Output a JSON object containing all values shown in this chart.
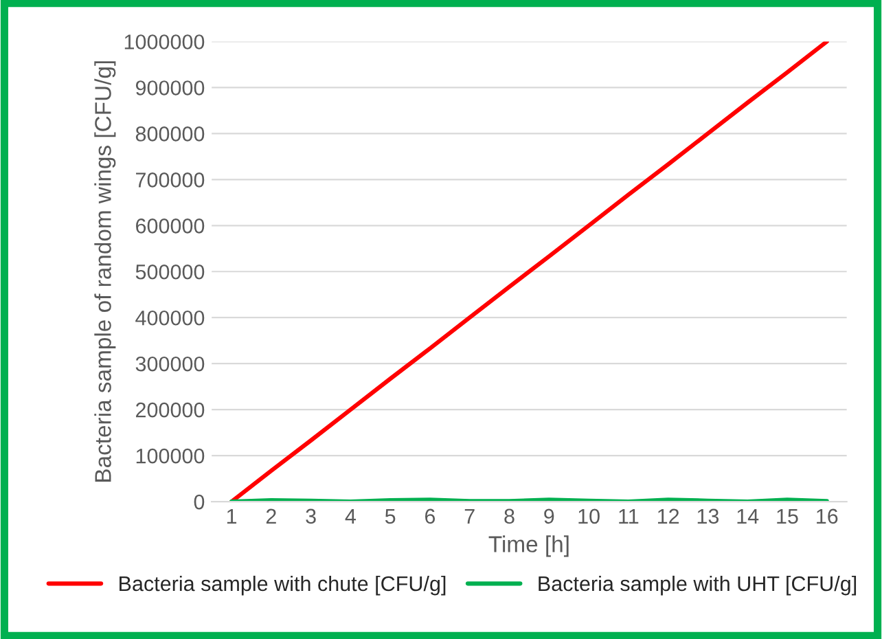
{
  "chart_data": {
    "type": "line",
    "xlabel": "Time [h]",
    "ylabel": "Bacteria sample of random wings [CFU/g]",
    "categories": [
      "1",
      "2",
      "3",
      "4",
      "5",
      "6",
      "7",
      "8",
      "9",
      "10",
      "11",
      "12",
      "13",
      "14",
      "15",
      "16"
    ],
    "series": [
      {
        "name": "Bacteria sample with chute [CFU/g]",
        "color": "#ff0000",
        "values": [
          0,
          67000,
          133000,
          200000,
          267000,
          333000,
          400000,
          467000,
          533000,
          600000,
          667000,
          733000,
          800000,
          867000,
          933000,
          1000000
        ]
      },
      {
        "name": "Bacteria sample with UHT [CFU/g]",
        "color": "#00b050",
        "values": [
          0,
          3000,
          2000,
          0,
          3000,
          4000,
          1000,
          1000,
          4000,
          2000,
          0,
          4000,
          2000,
          0,
          4000,
          1000
        ]
      }
    ],
    "ylim": [
      0,
      1000000
    ],
    "yticks": [
      0,
      100000,
      200000,
      300000,
      400000,
      500000,
      600000,
      700000,
      800000,
      900000,
      1000000
    ],
    "grid": "y",
    "legend": "bottom",
    "marker": "none",
    "line_style": "solid"
  }
}
